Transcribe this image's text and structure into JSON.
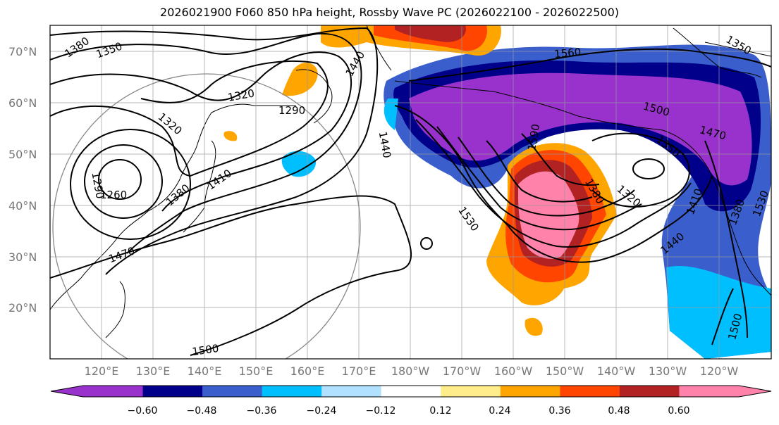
{
  "title": "2026021900 F060 850 hPa height, Rossby Wave PC (2026022100 - 2026022500)",
  "lat_labels": [
    "70°N",
    "60°N",
    "50°N",
    "40°N",
    "30°N",
    "20°N"
  ],
  "lon_labels": [
    "120°E",
    "130°E",
    "140°E",
    "150°E",
    "160°E",
    "170°E",
    "180°W",
    "170°W",
    "160°W",
    "150°W",
    "140°W",
    "130°W",
    "120°W"
  ],
  "contour_labels": [
    "1380",
    "1350",
    "1320",
    "1290",
    "1260",
    "1290",
    "1320",
    "1380",
    "1410",
    "1440",
    "1470",
    "1500",
    "1560",
    "1500",
    "1470",
    "1590",
    "1530",
    "1380",
    "1320",
    "1350",
    "1440",
    "1410",
    "1380",
    "1500",
    "1530",
    "1350",
    "1440"
  ],
  "colorbar": {
    "ticks": [
      "−0.60",
      "−0.48",
      "−0.36",
      "−0.24",
      "−0.12",
      "0.12",
      "0.24",
      "0.36",
      "0.48",
      "0.60"
    ],
    "colors": [
      "#9932CC",
      "#00008B",
      "#3A5FCD",
      "#00BFFF",
      "#B0E2FF",
      "#FFFFFF",
      "#FFEC8B",
      "#FFA500",
      "#FF4500",
      "#B22222",
      "#FF82AB"
    ]
  }
}
